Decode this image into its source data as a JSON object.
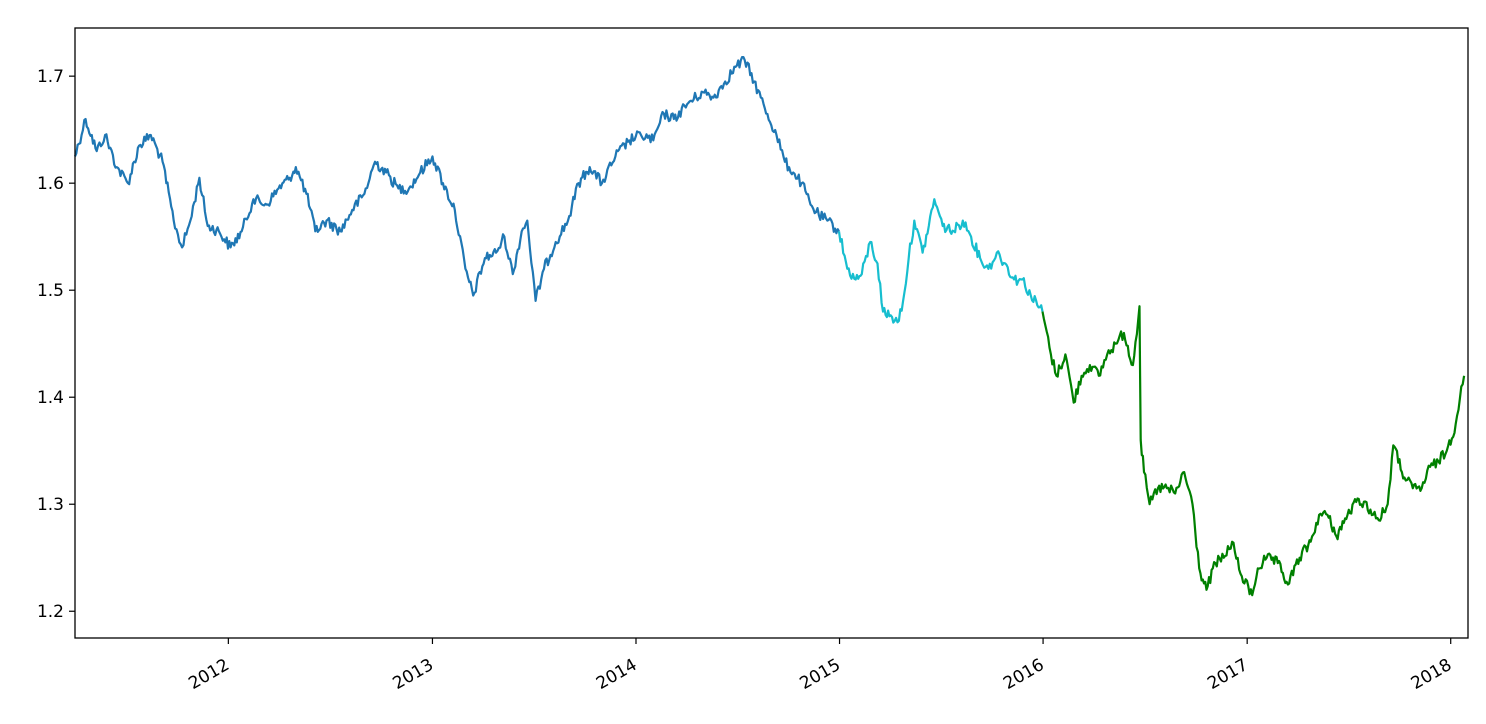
{
  "chart_data": {
    "type": "line",
    "title": "",
    "xlabel": "",
    "ylabel": "",
    "xlim": [
      "2011-04-01",
      "2018-02-01"
    ],
    "ylim": [
      1.175,
      1.745
    ],
    "grid": false,
    "legend": null,
    "x_ticks": [
      "2012",
      "2013",
      "2014",
      "2015",
      "2016",
      "2017",
      "2018"
    ],
    "y_ticks": [
      "1.2",
      "1.3",
      "1.4",
      "1.5",
      "1.6",
      "1.7"
    ],
    "series": [
      {
        "color": "#1f77b4",
        "points": [
          [
            "2011-04-01",
            1.625
          ],
          [
            "2011-04-20",
            1.66
          ],
          [
            "2011-05-10",
            1.63
          ],
          [
            "2011-05-25",
            1.645
          ],
          [
            "2011-06-15",
            1.615
          ],
          [
            "2011-07-05",
            1.6
          ],
          [
            "2011-07-25",
            1.635
          ],
          [
            "2011-08-15",
            1.645
          ],
          [
            "2011-09-05",
            1.62
          ],
          [
            "2011-09-25",
            1.565
          ],
          [
            "2011-10-10",
            1.54
          ],
          [
            "2011-10-25",
            1.565
          ],
          [
            "2011-11-10",
            1.605
          ],
          [
            "2011-11-25",
            1.56
          ],
          [
            "2011-12-15",
            1.555
          ],
          [
            "2012-01-05",
            1.54
          ],
          [
            "2012-01-25",
            1.555
          ],
          [
            "2012-02-15",
            1.585
          ],
          [
            "2012-03-10",
            1.58
          ],
          [
            "2012-03-31",
            1.595
          ],
          [
            "2012-04-20",
            1.605
          ],
          [
            "2012-05-01",
            1.615
          ],
          [
            "2012-05-20",
            1.59
          ],
          [
            "2012-06-05",
            1.555
          ],
          [
            "2012-06-25",
            1.565
          ],
          [
            "2012-07-20",
            1.555
          ],
          [
            "2012-08-10",
            1.575
          ],
          [
            "2012-09-01",
            1.59
          ],
          [
            "2012-09-20",
            1.62
          ],
          [
            "2012-10-10",
            1.61
          ],
          [
            "2012-11-01",
            1.595
          ],
          [
            "2012-11-20",
            1.595
          ],
          [
            "2012-12-10",
            1.61
          ],
          [
            "2013-01-01",
            1.625
          ],
          [
            "2013-01-20",
            1.6
          ],
          [
            "2013-02-10",
            1.575
          ],
          [
            "2013-03-01",
            1.52
          ],
          [
            "2013-03-15",
            1.495
          ],
          [
            "2013-04-05",
            1.53
          ],
          [
            "2013-04-25",
            1.535
          ],
          [
            "2013-05-10",
            1.55
          ],
          [
            "2013-05-25",
            1.515
          ],
          [
            "2013-06-10",
            1.555
          ],
          [
            "2013-06-20",
            1.565
          ],
          [
            "2013-07-05",
            1.49
          ],
          [
            "2013-07-20",
            1.52
          ],
          [
            "2013-08-10",
            1.545
          ],
          [
            "2013-09-01",
            1.565
          ],
          [
            "2013-09-20",
            1.6
          ],
          [
            "2013-10-10",
            1.615
          ],
          [
            "2013-11-01",
            1.6
          ],
          [
            "2013-11-25",
            1.625
          ],
          [
            "2013-12-20",
            1.64
          ],
          [
            "2014-01-10",
            1.645
          ],
          [
            "2014-02-01",
            1.64
          ],
          [
            "2014-02-20",
            1.665
          ],
          [
            "2014-03-10",
            1.66
          ],
          [
            "2014-04-05",
            1.675
          ],
          [
            "2014-05-01",
            1.685
          ],
          [
            "2014-05-20",
            1.68
          ],
          [
            "2014-06-10",
            1.695
          ],
          [
            "2014-07-01",
            1.71
          ],
          [
            "2014-07-15",
            1.715
          ],
          [
            "2014-08-01",
            1.695
          ],
          [
            "2014-08-20",
            1.67
          ],
          [
            "2014-09-10",
            1.645
          ],
          [
            "2014-09-25",
            1.62
          ],
          [
            "2014-10-10",
            1.61
          ],
          [
            "2014-10-25",
            1.6
          ],
          [
            "2014-11-10",
            1.58
          ],
          [
            "2014-11-25",
            1.57
          ],
          [
            "2014-12-10",
            1.565
          ],
          [
            "2014-12-31",
            1.555
          ]
        ]
      },
      {
        "color": "#17becf",
        "points": [
          [
            "2014-12-31",
            1.555
          ],
          [
            "2015-01-15",
            1.52
          ],
          [
            "2015-01-30",
            1.51
          ],
          [
            "2015-02-10",
            1.515
          ],
          [
            "2015-02-25",
            1.545
          ],
          [
            "2015-03-10",
            1.525
          ],
          [
            "2015-03-20",
            1.48
          ],
          [
            "2015-04-05",
            1.475
          ],
          [
            "2015-04-15",
            1.47
          ],
          [
            "2015-04-25",
            1.49
          ],
          [
            "2015-05-05",
            1.53
          ],
          [
            "2015-05-15",
            1.565
          ],
          [
            "2015-05-30",
            1.535
          ],
          [
            "2015-06-10",
            1.56
          ],
          [
            "2015-06-20",
            1.585
          ],
          [
            "2015-07-05",
            1.56
          ],
          [
            "2015-07-25",
            1.555
          ],
          [
            "2015-08-10",
            1.565
          ],
          [
            "2015-08-25",
            1.55
          ],
          [
            "2015-09-10",
            1.53
          ],
          [
            "2015-09-25",
            1.52
          ],
          [
            "2015-10-10",
            1.535
          ],
          [
            "2015-10-25",
            1.525
          ],
          [
            "2015-11-10",
            1.51
          ],
          [
            "2015-11-25",
            1.51
          ],
          [
            "2015-12-10",
            1.495
          ],
          [
            "2015-12-31",
            1.48
          ]
        ]
      },
      {
        "color": "#008000",
        "points": [
          [
            "2015-12-31",
            1.48
          ],
          [
            "2016-01-15",
            1.44
          ],
          [
            "2016-01-25",
            1.42
          ],
          [
            "2016-02-10",
            1.44
          ],
          [
            "2016-02-25",
            1.395
          ],
          [
            "2016-03-10",
            1.42
          ],
          [
            "2016-03-25",
            1.43
          ],
          [
            "2016-04-10",
            1.42
          ],
          [
            "2016-04-25",
            1.44
          ],
          [
            "2016-05-10",
            1.45
          ],
          [
            "2016-05-25",
            1.46
          ],
          [
            "2016-06-10",
            1.43
          ],
          [
            "2016-06-22",
            1.485
          ],
          [
            "2016-06-24",
            1.36
          ],
          [
            "2016-06-30",
            1.33
          ],
          [
            "2016-07-10",
            1.3
          ],
          [
            "2016-07-25",
            1.315
          ],
          [
            "2016-08-10",
            1.315
          ],
          [
            "2016-08-25",
            1.31
          ],
          [
            "2016-09-10",
            1.33
          ],
          [
            "2016-09-25",
            1.3
          ],
          [
            "2016-10-07",
            1.24
          ],
          [
            "2016-10-20",
            1.22
          ],
          [
            "2016-11-05",
            1.245
          ],
          [
            "2016-11-20",
            1.25
          ],
          [
            "2016-12-05",
            1.265
          ],
          [
            "2016-12-20",
            1.235
          ],
          [
            "2017-01-10",
            1.215
          ],
          [
            "2017-01-20",
            1.24
          ],
          [
            "2017-02-05",
            1.25
          ],
          [
            "2017-02-25",
            1.245
          ],
          [
            "2017-03-15",
            1.225
          ],
          [
            "2017-04-05",
            1.25
          ],
          [
            "2017-04-25",
            1.265
          ],
          [
            "2017-05-10",
            1.29
          ],
          [
            "2017-05-25",
            1.29
          ],
          [
            "2017-06-10",
            1.27
          ],
          [
            "2017-06-30",
            1.29
          ],
          [
            "2017-07-20",
            1.305
          ],
          [
            "2017-08-10",
            1.295
          ],
          [
            "2017-08-25",
            1.285
          ],
          [
            "2017-09-10",
            1.3
          ],
          [
            "2017-09-20",
            1.355
          ],
          [
            "2017-10-10",
            1.325
          ],
          [
            "2017-10-25",
            1.315
          ],
          [
            "2017-11-10",
            1.315
          ],
          [
            "2017-11-25",
            1.335
          ],
          [
            "2017-12-10",
            1.34
          ],
          [
            "2017-12-25",
            1.35
          ],
          [
            "2018-01-10",
            1.375
          ],
          [
            "2018-01-20",
            1.41
          ],
          [
            "2018-01-25",
            1.42
          ]
        ]
      }
    ]
  }
}
